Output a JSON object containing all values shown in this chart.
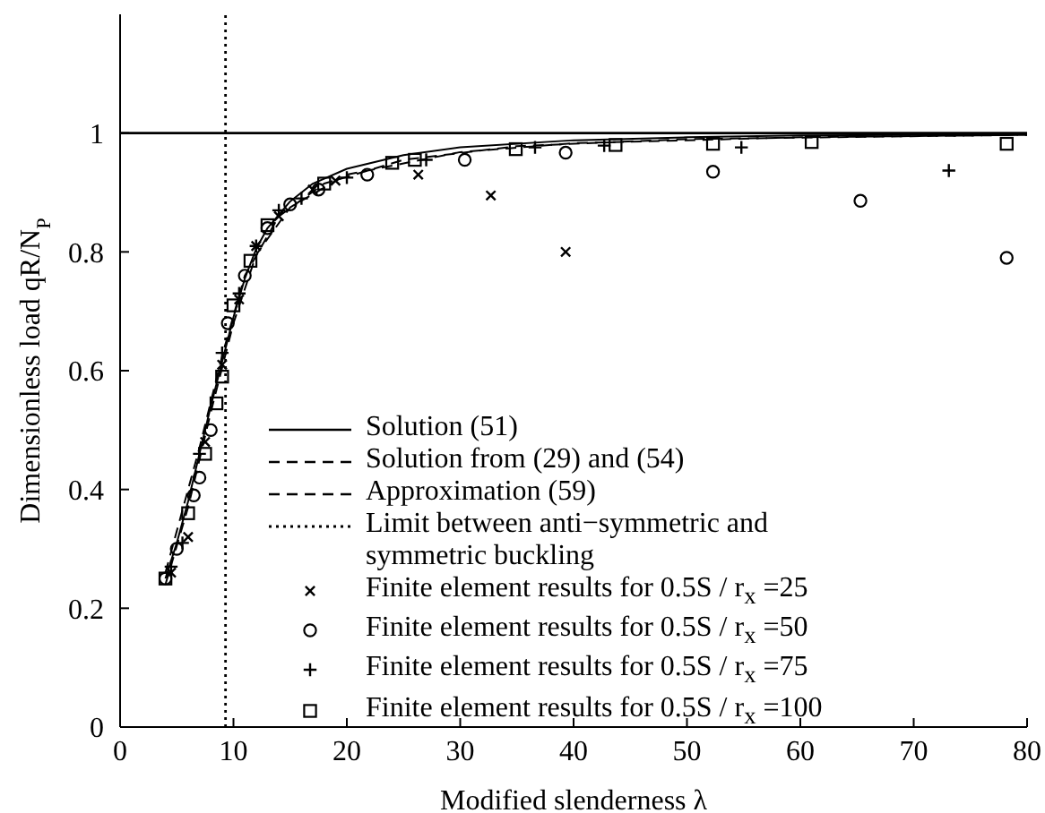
{
  "chart_data": {
    "type": "line",
    "xlabel": "Modified slenderness λ",
    "ylabel": "Dimensionless load qR/N$_{P}$",
    "xlim": [
      0,
      80
    ],
    "xticks": [
      0,
      10,
      20,
      30,
      40,
      50,
      60,
      70,
      80
    ],
    "ylim": [
      0,
      1.2
    ],
    "yticks": [
      0,
      0.2,
      0.4,
      0.6,
      0.8,
      1
    ],
    "grid": false,
    "legend": "bottom",
    "series": [
      {
        "name": "Solution (51)",
        "color": "#000000",
        "line_style": "solid",
        "x": [
          4,
          5,
          6,
          7,
          8,
          9,
          10,
          11,
          12,
          13,
          15,
          17,
          20,
          25,
          30,
          40,
          50,
          60,
          80
        ],
        "values": [
          0.25,
          0.31,
          0.38,
          0.46,
          0.54,
          0.615,
          0.69,
          0.755,
          0.805,
          0.84,
          0.885,
          0.915,
          0.94,
          0.963,
          0.976,
          0.988,
          0.993,
          0.996,
          0.998
        ]
      },
      {
        "name": "Solution from (29) and (54)",
        "color": "#000000",
        "line_style": "dashed",
        "x": [
          4,
          6,
          8,
          10,
          12,
          15,
          20,
          30,
          40,
          60,
          80
        ],
        "values": [
          0.24,
          0.37,
          0.53,
          0.68,
          0.795,
          0.875,
          0.93,
          0.968,
          0.983,
          0.993,
          0.997
        ]
      },
      {
        "name": "Approximation (59)",
        "color": "#000000",
        "line_style": "dashed",
        "x": [
          4,
          7,
          9,
          11,
          14,
          18,
          25,
          35,
          50,
          80
        ],
        "values": [
          0.26,
          0.47,
          0.625,
          0.76,
          0.86,
          0.915,
          0.955,
          0.978,
          0.99,
          0.997
        ]
      },
      {
        "name": "Limit between anti−symmetric and symmetric buckling",
        "color": "#000000",
        "line_style": "dotted",
        "x": [
          9.3,
          9.3
        ],
        "values": [
          0,
          1.2
        ]
      },
      {
        "name": "Finite element results for 0.5S / r$_{x}$ =25",
        "type": "scatter",
        "color": "#000000",
        "marker": "cross",
        "x": [
          4.5,
          6,
          7.5,
          9,
          10.5,
          12,
          14,
          17,
          19,
          26.3,
          32.7,
          39.3
        ],
        "values": [
          0.26,
          0.32,
          0.48,
          0.61,
          0.72,
          0.81,
          0.86,
          0.905,
          0.92,
          0.93,
          0.895,
          0.8
        ]
      },
      {
        "name": "Finite element results for 0.5S / r$_{x}$ =50",
        "type": "scatter",
        "color": "#000000",
        "marker": "circle",
        "x": [
          4,
          5,
          6.5,
          7,
          8,
          9.5,
          11,
          13,
          15,
          17.5,
          21.8,
          30.4,
          39.3,
          52.3,
          65.3,
          78.2
        ],
        "values": [
          0.25,
          0.3,
          0.39,
          0.42,
          0.5,
          0.68,
          0.76,
          0.84,
          0.88,
          0.905,
          0.93,
          0.955,
          0.967,
          0.935,
          0.886,
          0.79
        ]
      },
      {
        "name": "Finite element results for 0.5S / r$_{x}$ =75",
        "type": "scatter",
        "color": "#000000",
        "marker": "plus",
        "x": [
          4.5,
          5.5,
          7,
          9,
          10.5,
          12,
          14,
          16,
          20,
          27,
          36.6,
          42.7,
          54.8,
          73.1
        ],
        "values": [
          0.27,
          0.31,
          0.46,
          0.63,
          0.73,
          0.81,
          0.87,
          0.89,
          0.925,
          0.955,
          0.976,
          0.979,
          0.976,
          0.937
        ]
      },
      {
        "name": "Finite element results for 0.5S / r$_{x}$ =100",
        "type": "scatter",
        "color": "#000000",
        "marker": "square",
        "x": [
          4,
          6,
          7.5,
          8.5,
          9,
          10,
          11.5,
          13,
          18,
          24,
          26,
          34.9,
          43.7,
          52.3,
          61,
          78.2
        ],
        "values": [
          0.25,
          0.36,
          0.46,
          0.545,
          0.59,
          0.71,
          0.785,
          0.845,
          0.915,
          0.95,
          0.955,
          0.973,
          0.98,
          0.982,
          0.985,
          0.982
        ]
      }
    ],
    "ref_lines": [
      {
        "axis": "y",
        "value": 1,
        "color": "#000000",
        "line_style": "solid"
      }
    ]
  }
}
